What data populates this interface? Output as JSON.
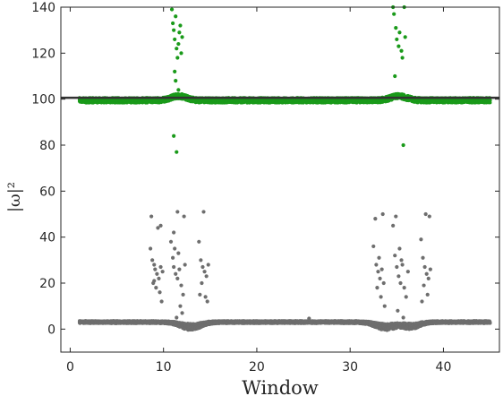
{
  "chart_data": {
    "type": "scatter",
    "xlabel": "Window",
    "ylabel": "|ω|²",
    "xlim": [
      -1,
      46
    ],
    "ylim": [
      -10,
      140
    ],
    "xticks": [
      0,
      10,
      20,
      30,
      40
    ],
    "yticks": [
      0,
      20,
      40,
      60,
      80,
      100,
      120,
      140
    ],
    "grid": false,
    "reference_line": {
      "y": 100.6,
      "color": "#333333"
    },
    "series": [
      {
        "color": "#1a9a1a",
        "band": {
          "x_start": 1,
          "x_end": 45,
          "baseline_low": 98.4,
          "baseline_high": 100.6,
          "bumps": [
            {
              "center": 11.6,
              "width": 1.2,
              "height": 1.8
            },
            {
              "center": 35.2,
              "width": 1.2,
              "height": 1.8
            }
          ]
        },
        "outliers": [
          [
            10.9,
            139
          ],
          [
            11.0,
            133
          ],
          [
            11.1,
            130
          ],
          [
            11.2,
            126
          ],
          [
            11.3,
            136
          ],
          [
            11.4,
            122
          ],
          [
            11.5,
            118
          ],
          [
            11.6,
            124
          ],
          [
            11.7,
            129
          ],
          [
            11.8,
            132
          ],
          [
            11.9,
            120
          ],
          [
            12.0,
            127
          ],
          [
            11.2,
            112
          ],
          [
            11.3,
            108
          ],
          [
            11.6,
            104
          ],
          [
            11.1,
            84
          ],
          [
            11.4,
            77
          ],
          [
            34.6,
            140
          ],
          [
            34.7,
            137
          ],
          [
            34.9,
            131
          ],
          [
            35.0,
            126
          ],
          [
            35.2,
            123
          ],
          [
            35.3,
            129
          ],
          [
            35.5,
            121
          ],
          [
            35.6,
            118
          ],
          [
            35.8,
            140
          ],
          [
            35.9,
            127
          ],
          [
            34.8,
            110
          ],
          [
            35.7,
            80
          ]
        ]
      },
      {
        "color": "#6e6e6e",
        "band": {
          "x_start": 1,
          "x_end": 45,
          "baseline_low": 2.5,
          "baseline_high": 3.6,
          "dips": [
            {
              "center": 12.9,
              "width": 1.5,
              "depth": 3.0
            },
            {
              "center": 33.8,
              "width": 1.5,
              "depth": 3.0
            },
            {
              "center": 36.5,
              "width": 1.3,
              "depth": 2.5
            }
          ]
        },
        "outliers": [
          [
            8.6,
            35
          ],
          [
            8.8,
            30
          ],
          [
            9.0,
            28
          ],
          [
            9.1,
            26
          ],
          [
            9.3,
            24
          ],
          [
            9.5,
            22
          ],
          [
            9.7,
            27
          ],
          [
            9.9,
            25
          ],
          [
            8.9,
            20
          ],
          [
            9.2,
            18
          ],
          [
            9.6,
            16
          ],
          [
            9.8,
            12
          ],
          [
            8.7,
            49
          ],
          [
            9.7,
            45
          ],
          [
            9.4,
            44
          ],
          [
            9.0,
            21
          ],
          [
            10.8,
            38
          ],
          [
            11.0,
            31
          ],
          [
            11.1,
            27
          ],
          [
            11.3,
            24
          ],
          [
            11.5,
            22
          ],
          [
            11.7,
            26
          ],
          [
            11.9,
            19
          ],
          [
            12.1,
            15
          ],
          [
            12.3,
            28
          ],
          [
            11.2,
            35
          ],
          [
            11.6,
            33
          ],
          [
            11.8,
            10
          ],
          [
            12.0,
            7
          ],
          [
            11.4,
            5
          ],
          [
            11.5,
            51
          ],
          [
            11.1,
            42
          ],
          [
            12.2,
            49
          ],
          [
            13.8,
            38
          ],
          [
            14.0,
            30
          ],
          [
            14.2,
            27
          ],
          [
            14.4,
            25
          ],
          [
            14.6,
            23
          ],
          [
            14.8,
            28
          ],
          [
            14.1,
            20
          ],
          [
            14.5,
            14
          ],
          [
            14.3,
            51
          ],
          [
            14.7,
            12
          ],
          [
            13.9,
            15
          ],
          [
            32.5,
            36
          ],
          [
            32.8,
            28
          ],
          [
            33.0,
            25
          ],
          [
            33.2,
            22
          ],
          [
            33.4,
            26
          ],
          [
            33.6,
            20
          ],
          [
            32.9,
            18
          ],
          [
            33.3,
            14
          ],
          [
            33.5,
            50
          ],
          [
            33.1,
            31
          ],
          [
            32.7,
            48
          ],
          [
            33.7,
            10
          ],
          [
            34.6,
            45
          ],
          [
            34.8,
            32
          ],
          [
            35.0,
            27
          ],
          [
            35.2,
            23
          ],
          [
            35.4,
            20
          ],
          [
            35.6,
            28
          ],
          [
            35.8,
            18
          ],
          [
            36.0,
            14
          ],
          [
            34.9,
            49
          ],
          [
            35.3,
            35
          ],
          [
            35.5,
            30
          ],
          [
            35.1,
            8
          ],
          [
            35.7,
            5
          ],
          [
            36.2,
            25
          ],
          [
            37.6,
            39
          ],
          [
            37.8,
            31
          ],
          [
            38.0,
            27
          ],
          [
            38.2,
            24
          ],
          [
            38.4,
            22
          ],
          [
            38.6,
            26
          ],
          [
            37.9,
            19
          ],
          [
            38.3,
            15
          ],
          [
            38.1,
            50
          ],
          [
            38.5,
            49
          ],
          [
            37.7,
            12
          ],
          [
            25.6,
            4.6
          ]
        ]
      }
    ]
  }
}
